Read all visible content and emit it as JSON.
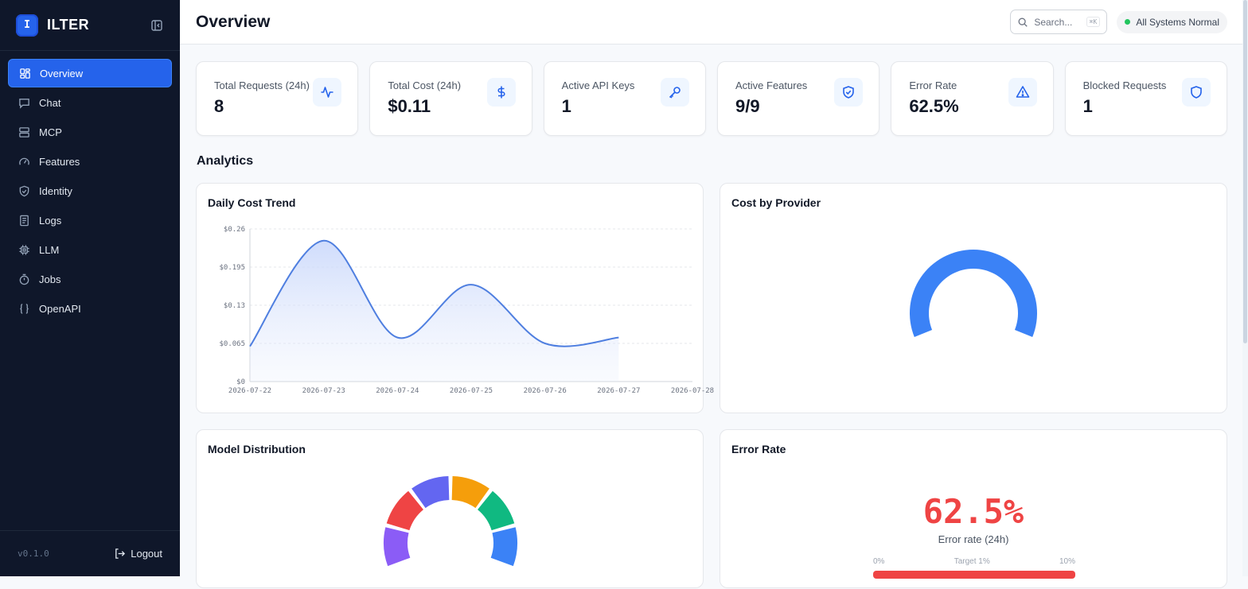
{
  "app": {
    "brand_initial": "I",
    "brand_name": "ILTER",
    "version": "v0.1.0",
    "logout_label": "Logout"
  },
  "sidebar": {
    "items": [
      {
        "label": "Overview",
        "icon": "grid-icon"
      },
      {
        "label": "Chat",
        "icon": "chat-icon"
      },
      {
        "label": "MCP",
        "icon": "server-icon"
      },
      {
        "label": "Features",
        "icon": "gauge-icon"
      },
      {
        "label": "Identity",
        "icon": "shield-check-icon"
      },
      {
        "label": "Logs",
        "icon": "log-file-icon"
      },
      {
        "label": "LLM",
        "icon": "chip-icon"
      },
      {
        "label": "Jobs",
        "icon": "timer-icon"
      },
      {
        "label": "OpenAPI",
        "icon": "braces-icon"
      }
    ],
    "active_index": 0
  },
  "header": {
    "title": "Overview",
    "search_placeholder": "Search...",
    "search_shortcut": "⌘K",
    "status_label": "All Systems Normal"
  },
  "stats": [
    {
      "label": "Total Requests (24h)",
      "value": "8",
      "icon": "activity-icon"
    },
    {
      "label": "Total Cost (24h)",
      "value": "$0.11",
      "icon": "dollar-icon"
    },
    {
      "label": "Active API Keys",
      "value": "1",
      "icon": "key-icon"
    },
    {
      "label": "Active Features",
      "value": "9/9",
      "icon": "shield-check-icon"
    },
    {
      "label": "Error Rate",
      "value": "62.5%",
      "icon": "alert-triangle-icon"
    },
    {
      "label": "Blocked Requests",
      "value": "1",
      "icon": "shield-icon"
    }
  ],
  "analytics": {
    "title": "Analytics",
    "daily_cost_title": "Daily Cost Trend",
    "cost_by_provider_title": "Cost by Provider",
    "model_distribution_title": "Model Distribution",
    "error_rate_title": "Error Rate",
    "error_rate_value": "62.5%",
    "error_rate_caption": "Error rate (24h)",
    "error_scale_min": "0%",
    "error_scale_target": "Target 1%",
    "error_scale_max": "10%"
  },
  "colors": {
    "accent": "#2563eb",
    "chart_line": "#4f7fe0",
    "error": "#ef4444",
    "status_ok": "#22c55e"
  },
  "chart_data": [
    {
      "type": "area",
      "title": "Daily Cost Trend",
      "x": [
        "2026-07-22",
        "2026-07-23",
        "2026-07-24",
        "2026-07-25",
        "2026-07-26",
        "2026-07-27"
      ],
      "x_ticks": [
        "2026-07-22",
        "2026-07-23",
        "2026-07-24",
        "2026-07-25",
        "2026-07-26",
        "2026-07-27",
        "2026-07-28"
      ],
      "y": [
        0.06,
        0.24,
        0.075,
        0.165,
        0.065,
        0.075
      ],
      "y_ticks": [
        "$0",
        "$0.065",
        "$0.13",
        "$0.195",
        "$0.26"
      ],
      "ylim": [
        0,
        0.26
      ],
      "grid": true
    },
    {
      "type": "pie",
      "title": "Cost by Provider",
      "style": "half-donut",
      "values": [
        1
      ],
      "colors": [
        "#3b82f6"
      ]
    },
    {
      "type": "pie",
      "title": "Model Distribution",
      "style": "half-donut",
      "values": [
        1,
        1,
        1,
        1,
        1,
        1
      ],
      "colors": [
        "#8b5cf6",
        "#ef4444",
        "#6366f1",
        "#f59e0b",
        "#10b981",
        "#3b82f6"
      ]
    }
  ]
}
